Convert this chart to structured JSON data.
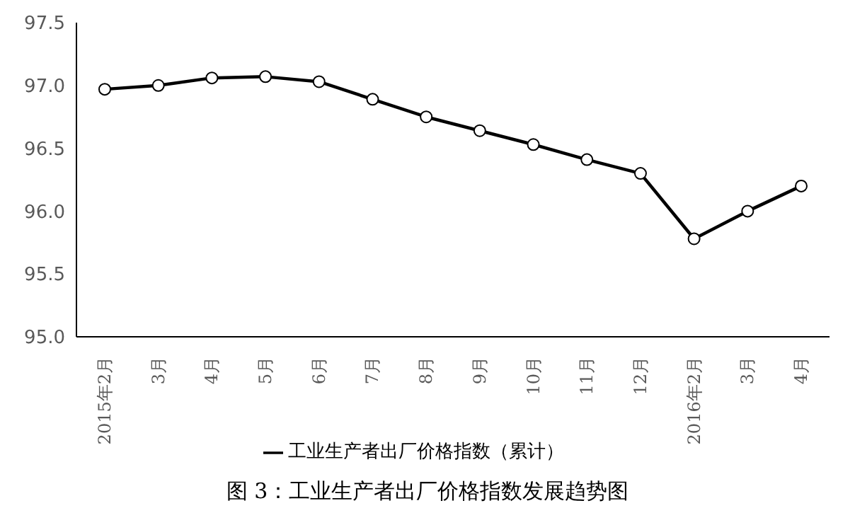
{
  "chart_data": {
    "type": "line",
    "title": "图 3：工业生产者出厂价格指数发展趋势图",
    "categories": [
      "2015年2月",
      "3月",
      "4月",
      "5月",
      "6月",
      "7月",
      "8月",
      "9月",
      "10月",
      "11月",
      "12月",
      "2016年2月",
      "3月",
      "4月"
    ],
    "series": [
      {
        "name": "工业生产者出厂价格指数（累计）",
        "color": "#000000",
        "values": [
          96.97,
          97.0,
          97.06,
          97.07,
          97.03,
          96.89,
          96.75,
          96.64,
          96.53,
          96.41,
          96.3,
          95.78,
          96.0,
          96.2
        ]
      }
    ],
    "ylim": [
      95.0,
      97.5
    ],
    "yticks": [
      {
        "value": 95.0,
        "label": "95.0"
      },
      {
        "value": 95.5,
        "label": "95.5"
      },
      {
        "value": 96.0,
        "label": "96.0"
      },
      {
        "value": 96.5,
        "label": "96.5"
      },
      {
        "value": 97.0,
        "label": "97.0"
      },
      {
        "value": 97.5,
        "label": "97.5"
      }
    ],
    "legend": "bottom",
    "marker": "circle",
    "line_style": "solid",
    "grid": false
  }
}
